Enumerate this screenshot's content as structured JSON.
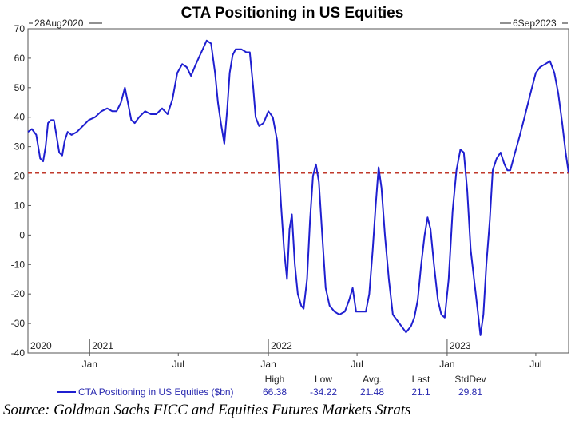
{
  "chart_data": {
    "type": "line",
    "title": "CTA Positioning in US Equities",
    "start_label": "28Aug2020",
    "end_label": "6Sep2023",
    "ylim": [
      -40,
      70
    ],
    "yticks": [
      70,
      60,
      50,
      40,
      30,
      20,
      10,
      0,
      -10,
      -20,
      -30,
      -40
    ],
    "x_range": [
      "2020-08-28",
      "2023-09-06"
    ],
    "year_labels": [
      {
        "label": "2020",
        "date": "2020-08-28"
      },
      {
        "label": "2021",
        "date": "2021-01-01"
      },
      {
        "label": "2022",
        "date": "2022-01-01"
      },
      {
        "label": "2023",
        "date": "2023-01-01"
      }
    ],
    "month_labels": [
      {
        "label": "Jan",
        "date": "2021-01-01"
      },
      {
        "label": "Jul",
        "date": "2021-07-01"
      },
      {
        "label": "Jan",
        "date": "2022-01-01"
      },
      {
        "label": "Jul",
        "date": "2022-07-01"
      },
      {
        "label": "Jan",
        "date": "2023-01-01"
      },
      {
        "label": "Jul",
        "date": "2023-07-01"
      }
    ],
    "reference_line": {
      "y": 21.1,
      "style": "dashed",
      "color": "#c0392b"
    },
    "series": [
      {
        "name": "CTA Positioning in US Equities ($bn)",
        "color": "#1f1fd0",
        "points": [
          [
            "2020-08-28",
            35
          ],
          [
            "2020-09-05",
            36
          ],
          [
            "2020-09-14",
            34
          ],
          [
            "2020-09-22",
            26
          ],
          [
            "2020-09-28",
            25
          ],
          [
            "2020-10-03",
            30
          ],
          [
            "2020-10-08",
            38
          ],
          [
            "2020-10-14",
            39
          ],
          [
            "2020-10-20",
            39
          ],
          [
            "2020-10-26",
            33
          ],
          [
            "2020-10-31",
            28
          ],
          [
            "2020-11-06",
            27
          ],
          [
            "2020-11-11",
            32
          ],
          [
            "2020-11-17",
            35
          ],
          [
            "2020-11-25",
            34
          ],
          [
            "2020-12-06",
            35
          ],
          [
            "2020-12-18",
            37
          ],
          [
            "2020-12-30",
            39
          ],
          [
            "2021-01-12",
            40
          ],
          [
            "2021-01-25",
            42
          ],
          [
            "2021-02-06",
            43
          ],
          [
            "2021-02-16",
            42
          ],
          [
            "2021-02-25",
            42
          ],
          [
            "2021-03-06",
            45
          ],
          [
            "2021-03-14",
            50
          ],
          [
            "2021-03-20",
            45
          ],
          [
            "2021-03-27",
            39
          ],
          [
            "2021-04-03",
            38
          ],
          [
            "2021-04-12",
            40
          ],
          [
            "2021-04-24",
            42
          ],
          [
            "2021-05-06",
            41
          ],
          [
            "2021-05-17",
            41
          ],
          [
            "2021-05-29",
            43
          ],
          [
            "2021-06-09",
            41
          ],
          [
            "2021-06-19",
            46
          ],
          [
            "2021-06-29",
            55
          ],
          [
            "2021-07-09",
            58
          ],
          [
            "2021-07-18",
            57
          ],
          [
            "2021-07-27",
            54
          ],
          [
            "2021-08-06",
            58
          ],
          [
            "2021-08-17",
            62
          ],
          [
            "2021-08-28",
            66
          ],
          [
            "2021-09-06",
            65
          ],
          [
            "2021-09-14",
            55
          ],
          [
            "2021-09-20",
            45
          ],
          [
            "2021-09-26",
            38
          ],
          [
            "2021-10-03",
            31
          ],
          [
            "2021-10-09",
            43
          ],
          [
            "2021-10-14",
            55
          ],
          [
            "2021-10-20",
            61
          ],
          [
            "2021-10-26",
            63
          ],
          [
            "2021-11-07",
            63
          ],
          [
            "2021-11-17",
            62
          ],
          [
            "2021-11-24",
            62
          ],
          [
            "2021-12-01",
            50
          ],
          [
            "2021-12-06",
            40
          ],
          [
            "2021-12-13",
            37
          ],
          [
            "2021-12-22",
            38
          ],
          [
            "2022-01-01",
            42
          ],
          [
            "2022-01-10",
            40
          ],
          [
            "2022-01-19",
            32
          ],
          [
            "2022-01-27",
            10
          ],
          [
            "2022-02-02",
            -5
          ],
          [
            "2022-02-08",
            -15
          ],
          [
            "2022-02-13",
            2
          ],
          [
            "2022-02-18",
            7
          ],
          [
            "2022-02-24",
            -10
          ],
          [
            "2022-03-02",
            -20
          ],
          [
            "2022-03-09",
            -24
          ],
          [
            "2022-03-14",
            -25
          ],
          [
            "2022-03-21",
            -15
          ],
          [
            "2022-03-27",
            5
          ],
          [
            "2022-04-02",
            20
          ],
          [
            "2022-04-08",
            24
          ],
          [
            "2022-04-14",
            18
          ],
          [
            "2022-04-21",
            0
          ],
          [
            "2022-04-28",
            -18
          ],
          [
            "2022-05-06",
            -24
          ],
          [
            "2022-05-16",
            -26
          ],
          [
            "2022-05-26",
            -27
          ],
          [
            "2022-06-06",
            -26
          ],
          [
            "2022-06-15",
            -22
          ],
          [
            "2022-06-22",
            -18
          ],
          [
            "2022-06-29",
            -26
          ],
          [
            "2022-07-09",
            -26
          ],
          [
            "2022-07-19",
            -26
          ],
          [
            "2022-07-26",
            -20
          ],
          [
            "2022-08-02",
            -5
          ],
          [
            "2022-08-08",
            10
          ],
          [
            "2022-08-14",
            23
          ],
          [
            "2022-08-20",
            16
          ],
          [
            "2022-08-27",
            0
          ],
          [
            "2022-09-04",
            -15
          ],
          [
            "2022-09-12",
            -27
          ],
          [
            "2022-09-21",
            -29
          ],
          [
            "2022-09-30",
            -31
          ],
          [
            "2022-10-09",
            -33
          ],
          [
            "2022-10-19",
            -31
          ],
          [
            "2022-10-26",
            -28
          ],
          [
            "2022-11-02",
            -22
          ],
          [
            "2022-11-09",
            -10
          ],
          [
            "2022-11-16",
            0
          ],
          [
            "2022-11-22",
            6
          ],
          [
            "2022-11-28",
            2
          ],
          [
            "2022-12-05",
            -10
          ],
          [
            "2022-12-13",
            -22
          ],
          [
            "2022-12-20",
            -27
          ],
          [
            "2022-12-27",
            -28
          ],
          [
            "2023-01-04",
            -15
          ],
          [
            "2023-01-12",
            8
          ],
          [
            "2023-01-20",
            22
          ],
          [
            "2023-01-28",
            29
          ],
          [
            "2023-02-04",
            28
          ],
          [
            "2023-02-11",
            15
          ],
          [
            "2023-02-18",
            -5
          ],
          [
            "2023-02-25",
            -15
          ],
          [
            "2023-03-04",
            -25
          ],
          [
            "2023-03-10",
            -34
          ],
          [
            "2023-03-16",
            -27
          ],
          [
            "2023-03-22",
            -10
          ],
          [
            "2023-03-29",
            5
          ],
          [
            "2023-04-04",
            22
          ],
          [
            "2023-04-12",
            26
          ],
          [
            "2023-04-20",
            28
          ],
          [
            "2023-04-28",
            24
          ],
          [
            "2023-05-04",
            22
          ],
          [
            "2023-05-10",
            22
          ],
          [
            "2023-05-18",
            27
          ],
          [
            "2023-05-28",
            33
          ],
          [
            "2023-06-08",
            40
          ],
          [
            "2023-06-20",
            48
          ],
          [
            "2023-07-01",
            55
          ],
          [
            "2023-07-10",
            57
          ],
          [
            "2023-07-20",
            58
          ],
          [
            "2023-07-30",
            59
          ],
          [
            "2023-08-08",
            55
          ],
          [
            "2023-08-16",
            48
          ],
          [
            "2023-08-24",
            38
          ],
          [
            "2023-08-31",
            28
          ],
          [
            "2023-09-06",
            21.1
          ]
        ]
      }
    ],
    "stats_headers": [
      "High",
      "Low",
      "Avg.",
      "Last",
      "StdDev"
    ],
    "stats_values": [
      "66.38",
      "-34.22",
      "21.48",
      "21.1",
      "29.81"
    ],
    "source": "Source: Goldman Sachs FICC and Equities Futures Markets Strats"
  }
}
